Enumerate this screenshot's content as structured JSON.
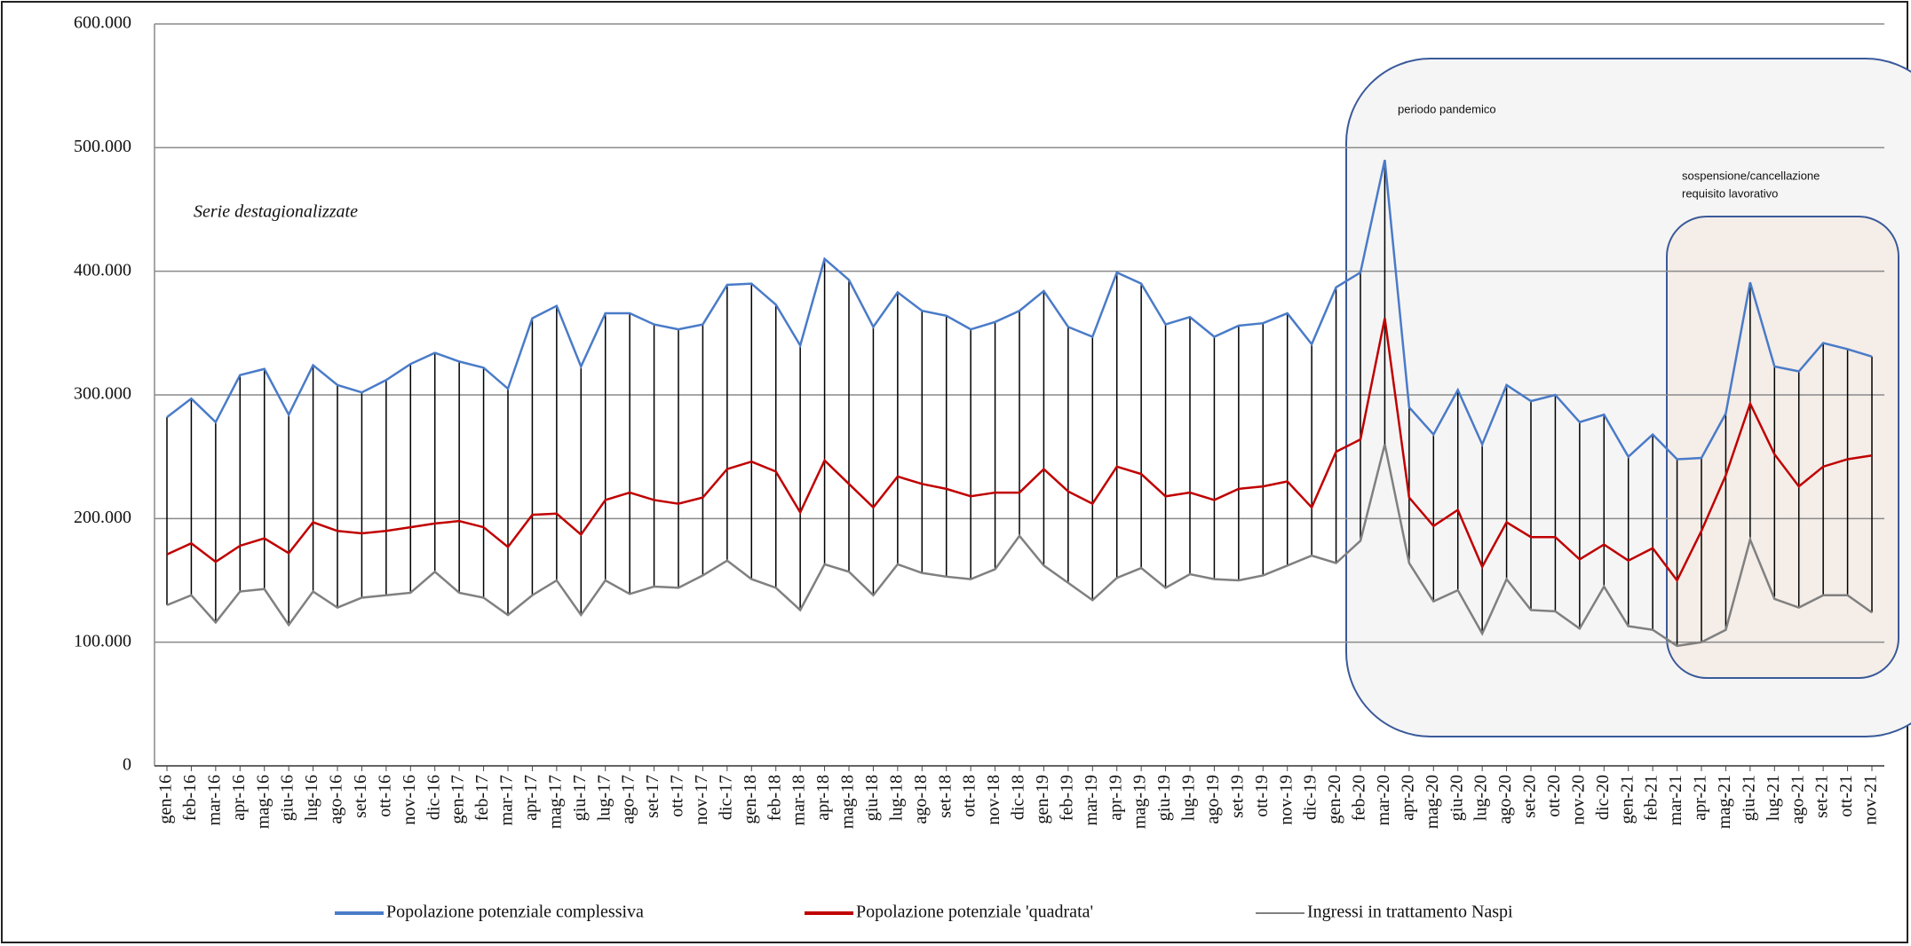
{
  "chart_data": {
    "type": "line",
    "annotations": {
      "note": "Serie destagionalizzate",
      "pandemic": "periodo pandemico",
      "suspension": [
        "sospensione/cancellazione",
        "requisito lavorativo"
      ]
    },
    "categories": [
      "gen-16",
      "feb-16",
      "mar-16",
      "apr-16",
      "mag-16",
      "giu-16",
      "lug-16",
      "ago-16",
      "set-16",
      "ott-16",
      "nov-16",
      "dic-16",
      "gen-17",
      "feb-17",
      "mar-17",
      "apr-17",
      "mag-17",
      "giu-17",
      "lug-17",
      "ago-17",
      "set-17",
      "ott-17",
      "nov-17",
      "dic-17",
      "gen-18",
      "feb-18",
      "mar-18",
      "apr-18",
      "mag-18",
      "giu-18",
      "lug-18",
      "ago-18",
      "set-18",
      "ott-18",
      "nov-18",
      "dic-18",
      "gen-19",
      "feb-19",
      "mar-19",
      "apr-19",
      "mag-19",
      "giu-19",
      "lug-19",
      "ago-19",
      "set-19",
      "ott-19",
      "nov-19",
      "dic-19",
      "gen-20",
      "feb-20",
      "mar-20",
      "apr-20",
      "mag-20",
      "giu-20",
      "lug-20",
      "ago-20",
      "set-20",
      "ott-20",
      "nov-20",
      "dic-20",
      "gen-21",
      "feb-21",
      "mar-21",
      "apr-21",
      "mag-21",
      "giu-21",
      "lug-21",
      "ago-21",
      "set-21",
      "ott-21",
      "nov-21"
    ],
    "series": [
      {
        "name": "Popolazione potenziale complessiva",
        "color": "#4a7bc8",
        "values": [
          282000,
          297000,
          278000,
          316000,
          321000,
          284000,
          324000,
          308000,
          302000,
          312000,
          325000,
          334000,
          327000,
          322000,
          305000,
          362000,
          372000,
          323000,
          366000,
          366000,
          357000,
          353000,
          357000,
          389000,
          390000,
          373000,
          340000,
          410000,
          393000,
          355000,
          383000,
          368000,
          364000,
          353000,
          359000,
          368000,
          384000,
          355000,
          347000,
          399000,
          390000,
          357000,
          363000,
          347000,
          356000,
          358000,
          366000,
          341000,
          387000,
          399000,
          490000,
          290000,
          268000,
          304000,
          260000,
          308000,
          295000,
          300000,
          278000,
          284000,
          250000,
          268000,
          248000,
          249000,
          285000,
          391000,
          323000,
          319000,
          342000,
          337000,
          331000
        ]
      },
      {
        "name": "Popolazione potenziale 'quadrata'",
        "color": "#c00000",
        "values": [
          171000,
          180000,
          165000,
          178000,
          184000,
          172000,
          197000,
          190000,
          188000,
          190000,
          193000,
          196000,
          198000,
          193000,
          177000,
          203000,
          204000,
          187000,
          215000,
          221000,
          215000,
          212000,
          217000,
          240000,
          246000,
          238000,
          205000,
          247000,
          228000,
          209000,
          234000,
          228000,
          224000,
          218000,
          221000,
          221000,
          240000,
          222000,
          212000,
          242000,
          236000,
          218000,
          221000,
          215000,
          224000,
          226000,
          230000,
          209000,
          254000,
          264000,
          362000,
          217000,
          194000,
          207000,
          161000,
          197000,
          185000,
          185000,
          167000,
          179000,
          166000,
          176000,
          150000,
          190000,
          235000,
          293000,
          252000,
          226000,
          242000,
          248000,
          251000
        ]
      },
      {
        "name": "Ingressi in trattamento Naspi",
        "color": "#808080",
        "values": [
          130000,
          138000,
          116000,
          141000,
          143000,
          114000,
          141000,
          128000,
          136000,
          138000,
          140000,
          157000,
          140000,
          136000,
          122000,
          138000,
          150000,
          122000,
          150000,
          139000,
          145000,
          144000,
          154000,
          166000,
          151000,
          144000,
          126000,
          163000,
          157000,
          138000,
          163000,
          156000,
          153000,
          151000,
          159000,
          186000,
          162000,
          148000,
          134000,
          152000,
          160000,
          144000,
          155000,
          151000,
          150000,
          154000,
          162000,
          170000,
          164000,
          182000,
          260000,
          164000,
          133000,
          142000,
          107000,
          151000,
          126000,
          125000,
          111000,
          145000,
          113000,
          110000,
          97000,
          100000,
          110000,
          183000,
          135000,
          128000,
          138000,
          138000,
          124000
        ]
      }
    ],
    "ylim": [
      0,
      600000
    ],
    "yticks": [
      0,
      {
        "value": 100000,
        "label": "100.000"
      },
      {
        "value": 200000,
        "label": "200.000"
      },
      {
        "value": 300000,
        "label": "300.000"
      },
      {
        "value": 400000,
        "label": "400.000"
      },
      {
        "value": 500000,
        "label": "500.000"
      },
      {
        "value": 600000,
        "label": "600.000"
      }
    ],
    "grid": true,
    "legend": "bottom"
  }
}
